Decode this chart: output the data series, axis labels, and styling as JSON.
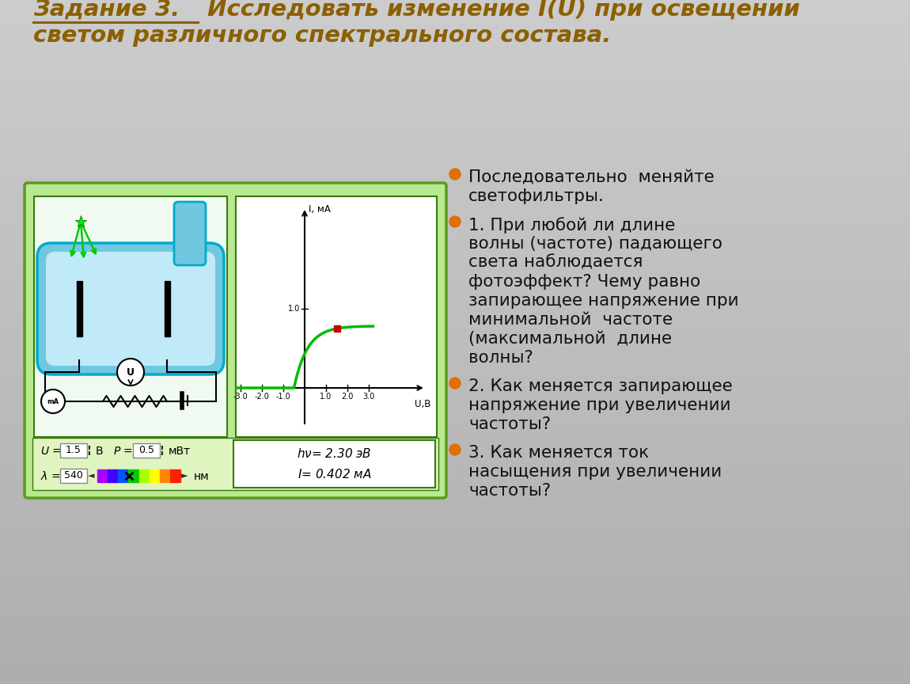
{
  "title_prefix": "Задание 3.",
  "title_rest1": " Исследовать изменение I(U) при освещении",
  "title_line2": "светом различного спектрального состава.",
  "title_color": "#8B6000",
  "bullet_color": "#E07000",
  "text_color": "#111111",
  "panel_bg": "#b8e890",
  "panel_border": "#5a9a20",
  "sub_bg": "#e0f4c0",
  "graph_bg": "#ffffff",
  "curve_color": "#00bb00",
  "dot_color": "#cc0000",
  "axis_label_x": "U,B",
  "axis_label_y": "I, мА",
  "x_ticks": [
    -3.0,
    -2.0,
    -1.0,
    1.0,
    2.0,
    3.0
  ],
  "y_tick": 1.0,
  "u_val": "1.5",
  "p_val": "0.5",
  "lambda_val": "540",
  "bullet_points": [
    [
      "Последовательно  меняйте",
      "светофильтры."
    ],
    [
      "1. При любой ли длине",
      "волны (частоте) падающего",
      "света наблюдается",
      "фотоэффект? Чему равно",
      "запирающее напряжение при",
      "минимальной  частоте",
      "(максимальной  длине",
      "волны?"
    ],
    [
      "2. Как меняется запирающее",
      "напряжение при увеличении",
      "частоты?"
    ],
    [
      "3. Как меняется ток",
      "насыщения при увеличении",
      "частоты?"
    ]
  ]
}
